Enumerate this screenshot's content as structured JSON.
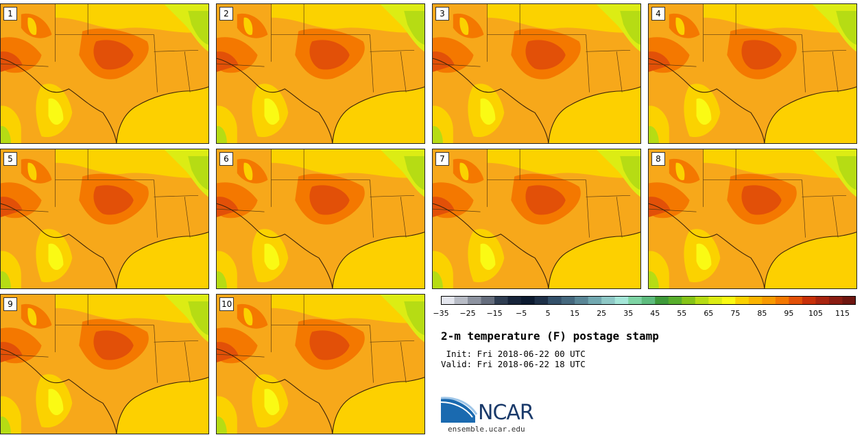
{
  "panels": [
    {
      "label": "1"
    },
    {
      "label": "2"
    },
    {
      "label": "3"
    },
    {
      "label": "4"
    },
    {
      "label": "5"
    },
    {
      "label": "6"
    },
    {
      "label": "7"
    },
    {
      "label": "8"
    },
    {
      "label": "9"
    },
    {
      "label": "10"
    }
  ],
  "colorbar": {
    "ticks": [
      "−35",
      "−25",
      "−15",
      "−5",
      "5",
      "15",
      "25",
      "35",
      "45",
      "55",
      "65",
      "75",
      "85",
      "95",
      "105",
      "115"
    ],
    "colors": [
      "#e4e6ee",
      "#b8bcc6",
      "#8d93a0",
      "#656d7d",
      "#2f3d52",
      "#17243a",
      "#0c1a30",
      "#1e3048",
      "#33506a",
      "#45687e",
      "#5a8696",
      "#72a8b0",
      "#8ec8c6",
      "#a4e6d8",
      "#7ed4a4",
      "#5ebc7e",
      "#3e9a3a",
      "#58ae2c",
      "#86c418",
      "#b6dc14",
      "#dcec14",
      "#fafa14",
      "#fbd200",
      "#fbb400",
      "#f89a00",
      "#f47800",
      "#e25008",
      "#c8300a",
      "#a82410",
      "#8a1c12",
      "#6e1610"
    ]
  },
  "title": "2-m temperature (F) postage stamp",
  "init_line": " Init: Fri 2018-06-22 00 UTC",
  "valid_line": "Valid: Fri 2018-06-22 18 UTC",
  "logo": {
    "name": "NCAR",
    "url": "ensemble.ucar.edu"
  }
}
